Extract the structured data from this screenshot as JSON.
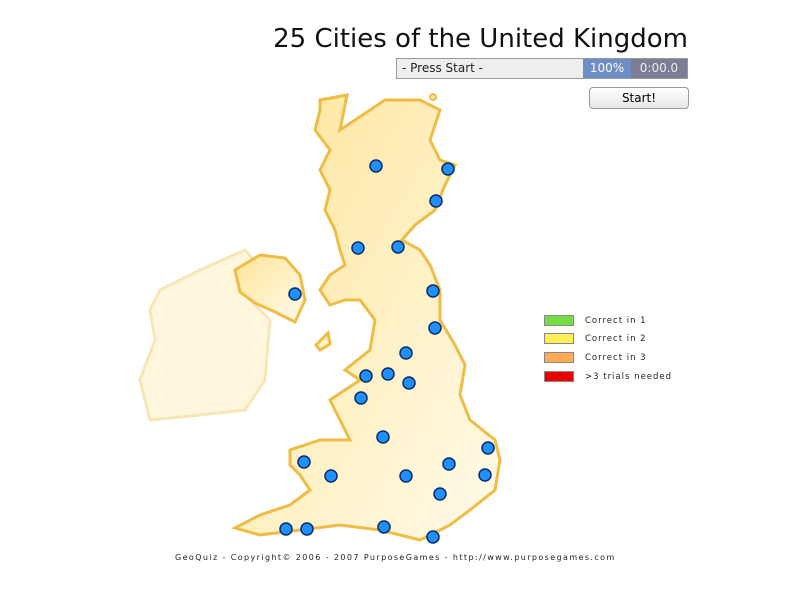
{
  "title": "25 Cities of the United Kingdom",
  "status": {
    "message": "- Press Start -",
    "progress": "100%",
    "timer": "0:00.0"
  },
  "start_label": "Start!",
  "legend": [
    {
      "label": "Correct in 1",
      "color": "#77dd44"
    },
    {
      "label": "Correct in 2",
      "color": "#ffee55"
    },
    {
      "label": "Correct in 3",
      "color": "#ffaa55"
    },
    {
      "label": ">3 trials needed",
      "color": "#ee0000"
    }
  ],
  "city_marker_color": "#1e90ff",
  "city_count": 25,
  "footer": "GeoQuiz - Copyright© 2006 - 2007 PurposeGames - http://www.purposegames.com"
}
